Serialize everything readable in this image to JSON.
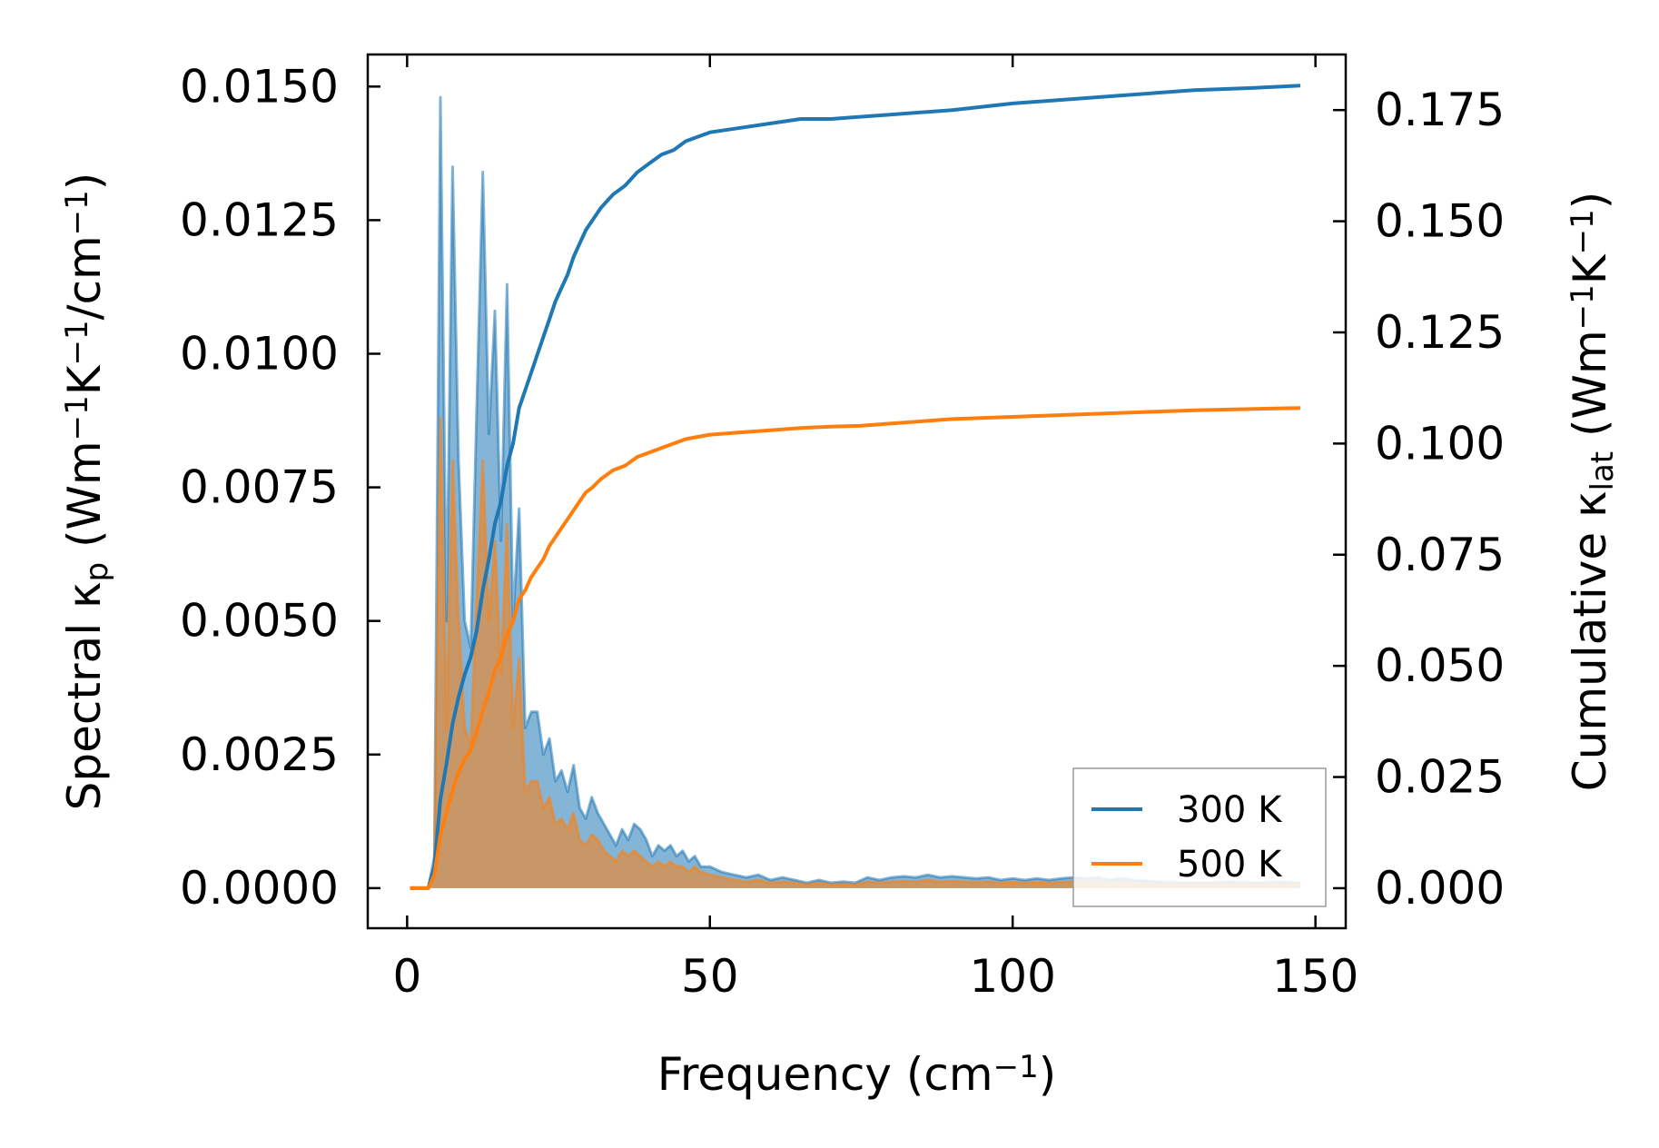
{
  "chart_data": {
    "type": "line",
    "xlabel": {
      "text": "Frequency (cm",
      "sup": "−1",
      "close": ")"
    },
    "ylabel_left": {
      "parts": [
        {
          "t": "Spectral κ"
        },
        {
          "t": "p",
          "sub": true
        },
        {
          "t": " (Wm"
        },
        {
          "t": "−1",
          "sup": true
        },
        {
          "t": "K"
        },
        {
          "t": "−1",
          "sup": true
        },
        {
          "t": "/cm"
        },
        {
          "t": "−1",
          "sup": true
        },
        {
          "t": ")"
        }
      ]
    },
    "ylabel_right": {
      "parts": [
        {
          "t": "Cumulative κ"
        },
        {
          "t": "lat",
          "sub": true
        },
        {
          "t": " (Wm"
        },
        {
          "t": "−1",
          "sup": true
        },
        {
          "t": "K"
        },
        {
          "t": "−1",
          "sup": true
        },
        {
          "t": ")"
        }
      ]
    },
    "xlim": [
      -6.5,
      155
    ],
    "ylim_left": [
      -0.00075,
      0.0156
    ],
    "ylim_right": [
      -0.009,
      0.1875
    ],
    "x_ticks": [
      0,
      50,
      100,
      150
    ],
    "x_tick_labels": [
      "0",
      "50",
      "100",
      "150"
    ],
    "y_left_ticks": [
      0,
      0.0025,
      0.005,
      0.0075,
      0.01,
      0.0125,
      0.015
    ],
    "y_left_tick_labels": [
      "0.0000",
      "0.0025",
      "0.0050",
      "0.0075",
      "0.0100",
      "0.0125",
      "0.0150"
    ],
    "y_right_ticks": [
      0,
      0.025,
      0.05,
      0.075,
      0.1,
      0.125,
      0.15,
      0.175
    ],
    "y_right_tick_labels": [
      "0.000",
      "0.025",
      "0.050",
      "0.075",
      "0.100",
      "0.125",
      "0.150",
      "0.175"
    ],
    "legend_position": "lower-right",
    "series": [
      {
        "name": "300 K",
        "color": "#1f77b4",
        "spectral": [
          [
            0.5,
            0
          ],
          [
            3.5,
            0
          ],
          [
            4.5,
            0.0006
          ],
          [
            5.5,
            0.0148
          ],
          [
            6.5,
            0.005
          ],
          [
            7.5,
            0.0135
          ],
          [
            8.5,
            0.008
          ],
          [
            9.5,
            0.005
          ],
          [
            10.5,
            0.0045
          ],
          [
            11.5,
            0.009
          ],
          [
            12.5,
            0.0134
          ],
          [
            13.5,
            0.0085
          ],
          [
            14.5,
            0.0108
          ],
          [
            15.5,
            0.0065
          ],
          [
            16.5,
            0.0113
          ],
          [
            17.5,
            0.005
          ],
          [
            18.5,
            0.0071
          ],
          [
            19.5,
            0.003
          ],
          [
            20.5,
            0.0033
          ],
          [
            21.5,
            0.0033
          ],
          [
            22.5,
            0.0025
          ],
          [
            23.5,
            0.0028
          ],
          [
            24.5,
            0.002
          ],
          [
            25.5,
            0.0022
          ],
          [
            26.5,
            0.0018
          ],
          [
            27.5,
            0.0023
          ],
          [
            28.5,
            0.0015
          ],
          [
            29.5,
            0.0013
          ],
          [
            30.5,
            0.0017
          ],
          [
            31.5,
            0.0014
          ],
          [
            32.5,
            0.0012
          ],
          [
            33.5,
            0.001
          ],
          [
            34.5,
            0.0008
          ],
          [
            35.5,
            0.0011
          ],
          [
            36.5,
            0.0009
          ],
          [
            37.5,
            0.0012
          ],
          [
            38.5,
            0.0011
          ],
          [
            39.5,
            0.0009
          ],
          [
            40.5,
            0.0006
          ],
          [
            41.5,
            0.0008
          ],
          [
            42.5,
            0.0007
          ],
          [
            43.5,
            0.0008
          ],
          [
            44.5,
            0.0006
          ],
          [
            45.5,
            0.0007
          ],
          [
            46.5,
            0.0005
          ],
          [
            47.5,
            0.0006
          ],
          [
            48.5,
            0.0004
          ],
          [
            50,
            0.0004
          ],
          [
            52,
            0.0003
          ],
          [
            54,
            0.00025
          ],
          [
            56,
            0.0002
          ],
          [
            58,
            0.00025
          ],
          [
            60,
            0.00015
          ],
          [
            62,
            0.0002
          ],
          [
            64,
            0.00015
          ],
          [
            66,
            0.0001
          ],
          [
            68,
            0.00015
          ],
          [
            70,
            0.0001
          ],
          [
            72,
            0.00012
          ],
          [
            74,
            0.0001
          ],
          [
            76,
            0.0002
          ],
          [
            78,
            0.00015
          ],
          [
            80,
            0.0002
          ],
          [
            82,
            0.00022
          ],
          [
            84,
            0.0002
          ],
          [
            86,
            0.00025
          ],
          [
            88,
            0.0002
          ],
          [
            90,
            0.00022
          ],
          [
            92,
            0.0002
          ],
          [
            94,
            0.00018
          ],
          [
            96,
            0.0002
          ],
          [
            98,
            0.00015
          ],
          [
            100,
            0.00018
          ],
          [
            102,
            0.00015
          ],
          [
            104,
            0.00018
          ],
          [
            106,
            0.00015
          ],
          [
            108,
            0.00018
          ],
          [
            110,
            0.0002
          ],
          [
            112,
            0.00018
          ],
          [
            114,
            0.0002
          ],
          [
            116,
            0.00015
          ],
          [
            118,
            0.00018
          ],
          [
            120,
            0.00015
          ],
          [
            124,
            0.00012
          ],
          [
            128,
            0.0001
          ],
          [
            132,
            0.0001
          ],
          [
            136,
            0.00012
          ],
          [
            140,
            0.0001
          ],
          [
            144,
            0.00012
          ],
          [
            147.5,
            0.0001
          ]
        ],
        "cumulative": [
          [
            0.5,
            0
          ],
          [
            3.5,
            0
          ],
          [
            4.5,
            0.005
          ],
          [
            5.5,
            0.02
          ],
          [
            6.5,
            0.028
          ],
          [
            7.5,
            0.037
          ],
          [
            8.5,
            0.043
          ],
          [
            9.5,
            0.048
          ],
          [
            10.5,
            0.052
          ],
          [
            11.5,
            0.058
          ],
          [
            12.5,
            0.067
          ],
          [
            13.5,
            0.074
          ],
          [
            14.5,
            0.082
          ],
          [
            15.5,
            0.087
          ],
          [
            16.5,
            0.095
          ],
          [
            17.5,
            0.1
          ],
          [
            18.5,
            0.108
          ],
          [
            19.5,
            0.112
          ],
          [
            20.5,
            0.116
          ],
          [
            21.5,
            0.12
          ],
          [
            22.5,
            0.124
          ],
          [
            23.5,
            0.128
          ],
          [
            24.5,
            0.132
          ],
          [
            25.5,
            0.135
          ],
          [
            26.5,
            0.138
          ],
          [
            27.5,
            0.142
          ],
          [
            28.5,
            0.145
          ],
          [
            29.5,
            0.148
          ],
          [
            30.5,
            0.15
          ],
          [
            32,
            0.153
          ],
          [
            34,
            0.156
          ],
          [
            36,
            0.158
          ],
          [
            38,
            0.161
          ],
          [
            40,
            0.163
          ],
          [
            42,
            0.165
          ],
          [
            44,
            0.166
          ],
          [
            46,
            0.168
          ],
          [
            48,
            0.169
          ],
          [
            50,
            0.17
          ],
          [
            55,
            0.171
          ],
          [
            60,
            0.172
          ],
          [
            65,
            0.173
          ],
          [
            70,
            0.173
          ],
          [
            75,
            0.1735
          ],
          [
            80,
            0.174
          ],
          [
            90,
            0.175
          ],
          [
            100,
            0.1765
          ],
          [
            110,
            0.1775
          ],
          [
            120,
            0.1785
          ],
          [
            130,
            0.1795
          ],
          [
            140,
            0.18
          ],
          [
            147.5,
            0.1805
          ]
        ]
      },
      {
        "name": "500 K",
        "color": "#ff7f0e",
        "spectral": [
          [
            0.5,
            0
          ],
          [
            3.5,
            0
          ],
          [
            4.5,
            0.0004
          ],
          [
            5.5,
            0.0088
          ],
          [
            6.5,
            0.003
          ],
          [
            7.5,
            0.008
          ],
          [
            8.5,
            0.005
          ],
          [
            9.5,
            0.003
          ],
          [
            10.5,
            0.0027
          ],
          [
            11.5,
            0.0054
          ],
          [
            12.5,
            0.008
          ],
          [
            13.5,
            0.005
          ],
          [
            14.5,
            0.0065
          ],
          [
            15.5,
            0.004
          ],
          [
            16.5,
            0.0068
          ],
          [
            17.5,
            0.003
          ],
          [
            18.5,
            0.0043
          ],
          [
            19.5,
            0.0018
          ],
          [
            20.5,
            0.002
          ],
          [
            21.5,
            0.002
          ],
          [
            22.5,
            0.0015
          ],
          [
            23.5,
            0.0017
          ],
          [
            24.5,
            0.0012
          ],
          [
            25.5,
            0.0013
          ],
          [
            26.5,
            0.0011
          ],
          [
            27.5,
            0.0014
          ],
          [
            28.5,
            0.0009
          ],
          [
            29.5,
            0.0008
          ],
          [
            30.5,
            0.001
          ],
          [
            31.5,
            0.0009
          ],
          [
            32.5,
            0.0007
          ],
          [
            33.5,
            0.0006
          ],
          [
            34.5,
            0.0005
          ],
          [
            35.5,
            0.0007
          ],
          [
            36.5,
            0.0006
          ],
          [
            37.5,
            0.0007
          ],
          [
            38.5,
            0.0006
          ],
          [
            39.5,
            0.0005
          ],
          [
            40.5,
            0.0004
          ],
          [
            41.5,
            0.0005
          ],
          [
            42.5,
            0.0004
          ],
          [
            43.5,
            0.0005
          ],
          [
            44.5,
            0.0004
          ],
          [
            45.5,
            0.0004
          ],
          [
            46.5,
            0.0003
          ],
          [
            47.5,
            0.0004
          ],
          [
            48.5,
            0.0003
          ],
          [
            50,
            0.00025
          ],
          [
            52,
            0.0002
          ],
          [
            54,
            0.00015
          ],
          [
            56,
            0.00012
          ],
          [
            58,
            0.00015
          ],
          [
            60,
            0.0001
          ],
          [
            62,
            0.00012
          ],
          [
            64,
            0.0001
          ],
          [
            66,
            7e-05
          ],
          [
            68,
            0.0001
          ],
          [
            70,
            7e-05
          ],
          [
            72,
            8e-05
          ],
          [
            74,
            7e-05
          ],
          [
            76,
            0.00012
          ],
          [
            78,
            0.0001
          ],
          [
            80,
            0.00012
          ],
          [
            82,
            0.00013
          ],
          [
            84,
            0.00012
          ],
          [
            86,
            0.00015
          ],
          [
            88,
            0.00012
          ],
          [
            90,
            0.00013
          ],
          [
            92,
            0.00012
          ],
          [
            94,
            0.00011
          ],
          [
            96,
            0.00012
          ],
          [
            98,
            0.0001
          ],
          [
            100,
            0.00011
          ],
          [
            102,
            0.0001
          ],
          [
            104,
            0.00011
          ],
          [
            106,
            0.0001
          ],
          [
            108,
            0.00011
          ],
          [
            110,
            0.00012
          ],
          [
            112,
            0.00011
          ],
          [
            114,
            0.00012
          ],
          [
            116,
            0.0001
          ],
          [
            118,
            0.00011
          ],
          [
            120,
            0.0001
          ],
          [
            124,
            8e-05
          ],
          [
            128,
            7e-05
          ],
          [
            132,
            7e-05
          ],
          [
            136,
            8e-05
          ],
          [
            140,
            7e-05
          ],
          [
            144,
            8e-05
          ],
          [
            147.5,
            7e-05
          ]
        ],
        "cumulative": [
          [
            0.5,
            0
          ],
          [
            3.5,
            0
          ],
          [
            4.5,
            0.003
          ],
          [
            5.5,
            0.012
          ],
          [
            6.5,
            0.017
          ],
          [
            7.5,
            0.022
          ],
          [
            8.5,
            0.026
          ],
          [
            9.5,
            0.029
          ],
          [
            10.5,
            0.031
          ],
          [
            11.5,
            0.035
          ],
          [
            12.5,
            0.04
          ],
          [
            13.5,
            0.044
          ],
          [
            14.5,
            0.049
          ],
          [
            15.5,
            0.052
          ],
          [
            16.5,
            0.057
          ],
          [
            17.5,
            0.06
          ],
          [
            18.5,
            0.065
          ],
          [
            19.5,
            0.067
          ],
          [
            20.5,
            0.07
          ],
          [
            21.5,
            0.072
          ],
          [
            22.5,
            0.074
          ],
          [
            23.5,
            0.077
          ],
          [
            24.5,
            0.079
          ],
          [
            25.5,
            0.081
          ],
          [
            26.5,
            0.083
          ],
          [
            27.5,
            0.085
          ],
          [
            28.5,
            0.087
          ],
          [
            29.5,
            0.089
          ],
          [
            30.5,
            0.09
          ],
          [
            32,
            0.092
          ],
          [
            34,
            0.094
          ],
          [
            36,
            0.095
          ],
          [
            38,
            0.097
          ],
          [
            40,
            0.098
          ],
          [
            42,
            0.099
          ],
          [
            44,
            0.1
          ],
          [
            46,
            0.101
          ],
          [
            48,
            0.1015
          ],
          [
            50,
            0.102
          ],
          [
            55,
            0.1025
          ],
          [
            60,
            0.103
          ],
          [
            65,
            0.1035
          ],
          [
            70,
            0.1038
          ],
          [
            75,
            0.104
          ],
          [
            80,
            0.1045
          ],
          [
            90,
            0.1055
          ],
          [
            100,
            0.106
          ],
          [
            110,
            0.1065
          ],
          [
            120,
            0.107
          ],
          [
            130,
            0.1075
          ],
          [
            140,
            0.1078
          ],
          [
            147.5,
            0.108
          ]
        ]
      }
    ]
  }
}
